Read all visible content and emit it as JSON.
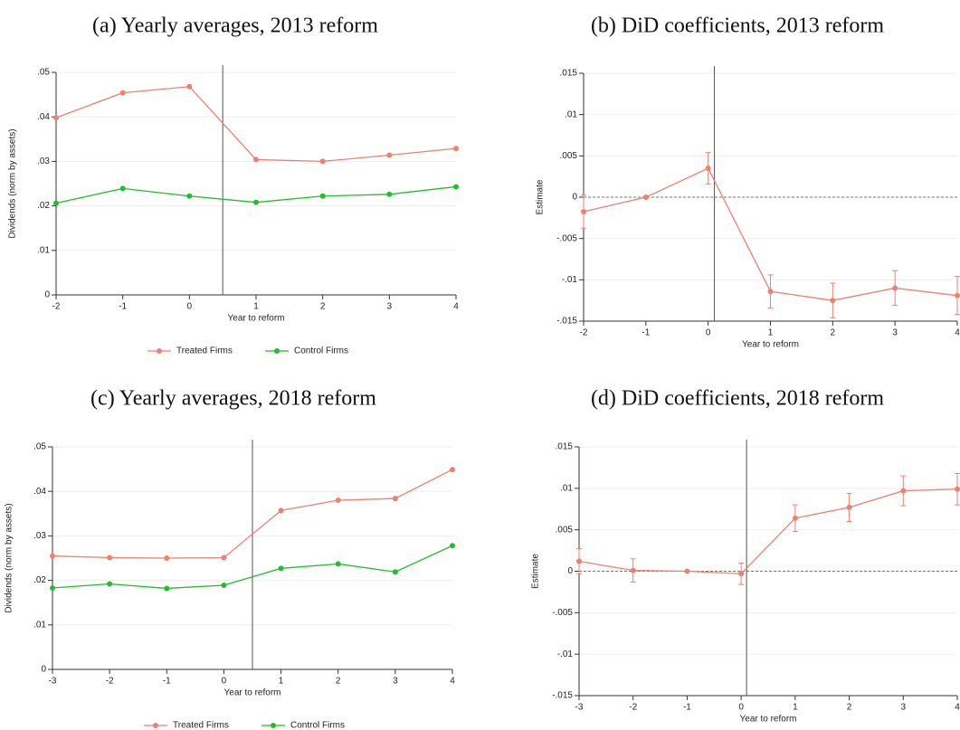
{
  "chart_data": [
    {
      "type": "line",
      "title": "(a) Yearly averages, 2013 reform",
      "x": [
        -2,
        -1,
        0,
        1,
        2,
        3,
        4
      ],
      "series": [
        {
          "name": "Treated Firms",
          "color": "#f07f6f",
          "values": [
            0.0398,
            0.0454,
            0.0468,
            0.0304,
            0.03,
            0.0314,
            0.0329
          ]
        },
        {
          "name": "Control Firms",
          "color": "#1fbf2a",
          "values": [
            0.0206,
            0.0239,
            0.0222,
            0.0208,
            0.0222,
            0.0226,
            0.0243
          ]
        }
      ],
      "xlim": [
        -2,
        4
      ],
      "xticks": [
        -2,
        -1,
        0,
        1,
        2,
        3,
        4
      ],
      "ylim": [
        0,
        0.05
      ],
      "yticks": [
        0,
        {
          "value": 0.01,
          "label": ".01"
        },
        {
          "value": 0.02,
          "label": ".02"
        },
        {
          "value": 0.03,
          "label": ".03"
        },
        {
          "value": 0.04,
          "label": ".04"
        },
        {
          "value": 0.05,
          "label": ".05"
        }
      ],
      "xlabel": "Year to reform",
      "ylabel": "Dividends (norm by assets)",
      "vline": 0.5,
      "grid": true,
      "legend": "bottom"
    },
    {
      "type": "errorbar",
      "title": "(b) DiD coefficients, 2013 reform",
      "x": [
        -2,
        -1,
        0,
        1,
        2,
        3,
        4
      ],
      "series": [
        {
          "color": "#f07f6f",
          "values": [
            -0.00175,
            0,
            0.0035,
            -0.0114,
            -0.0125,
            -0.011,
            -0.0119
          ],
          "errors": [
            0.002,
            null,
            0.0019,
            0.002,
            0.0021,
            0.0021,
            0.0023
          ]
        }
      ],
      "xlim": [
        -2,
        4
      ],
      "xticks": [
        -2,
        -1,
        0,
        1,
        2,
        3,
        4
      ],
      "ylim": [
        -0.015,
        0.015
      ],
      "yticks": [
        {
          "value": -0.015,
          "label": "-.015"
        },
        {
          "value": -0.01,
          "label": "-.01"
        },
        {
          "value": -0.005,
          "label": "-.005"
        },
        0,
        {
          "value": 0.005,
          "label": ".005"
        },
        {
          "value": 0.01,
          "label": ".01"
        },
        {
          "value": 0.015,
          "label": ".015"
        }
      ],
      "xlabel": "Year to reform",
      "ylabel": "Estimate",
      "vline": 0.1,
      "hline": 0,
      "grid": true
    },
    {
      "type": "line",
      "title": "(c) Yearly averages, 2018 reform",
      "x": [
        -3,
        -2,
        -1,
        0,
        1,
        2,
        3,
        4
      ],
      "series": [
        {
          "name": "Treated Firms",
          "color": "#f07f6f",
          "values": [
            0.0255,
            0.0251,
            0.025,
            0.0251,
            0.0357,
            0.038,
            0.0384,
            0.0449
          ]
        },
        {
          "name": "Control Firms",
          "color": "#1fbf2a",
          "values": [
            0.0183,
            0.0192,
            0.0182,
            0.0189,
            0.0227,
            0.0237,
            0.0219,
            0.0278
          ]
        }
      ],
      "xlim": [
        -3,
        4
      ],
      "xticks": [
        -3,
        -2,
        -1,
        0,
        1,
        2,
        3,
        4
      ],
      "ylim": [
        0,
        0.05
      ],
      "yticks": [
        0,
        {
          "value": 0.01,
          "label": ".01"
        },
        {
          "value": 0.02,
          "label": ".02"
        },
        {
          "value": 0.03,
          "label": ".03"
        },
        {
          "value": 0.04,
          "label": ".04"
        },
        {
          "value": 0.05,
          "label": ".05"
        }
      ],
      "xlabel": "Year to reform",
      "ylabel": "Dividends (norm by assets)",
      "vline": 0.5,
      "grid": true,
      "legend": "bottom"
    },
    {
      "type": "errorbar",
      "title": "(d) DiD coefficients, 2018 reform",
      "x": [
        -3,
        -2,
        -1,
        0,
        1,
        2,
        3,
        4
      ],
      "series": [
        {
          "color": "#f07f6f",
          "values": [
            0.0012,
            0.0001,
            0,
            -0.0003,
            0.0064,
            0.0077,
            0.0097,
            0.0099
          ],
          "errors": [
            0.0015,
            0.0014,
            null,
            0.0013,
            0.0016,
            0.0017,
            0.0018,
            0.0019
          ]
        }
      ],
      "xlim": [
        -3,
        4
      ],
      "xticks": [
        -3,
        -2,
        -1,
        0,
        1,
        2,
        3,
        4
      ],
      "ylim": [
        -0.015,
        0.015
      ],
      "yticks": [
        {
          "value": -0.015,
          "label": "-.015"
        },
        {
          "value": -0.01,
          "label": "-.01"
        },
        {
          "value": -0.005,
          "label": "-.005"
        },
        0,
        {
          "value": 0.005,
          "label": ".005"
        },
        {
          "value": 0.01,
          "label": ".01"
        },
        {
          "value": 0.015,
          "label": ".015"
        }
      ],
      "xlabel": "Year to reform",
      "ylabel": "Estimate",
      "vline": 0.1,
      "hline": 0,
      "grid": true
    }
  ]
}
